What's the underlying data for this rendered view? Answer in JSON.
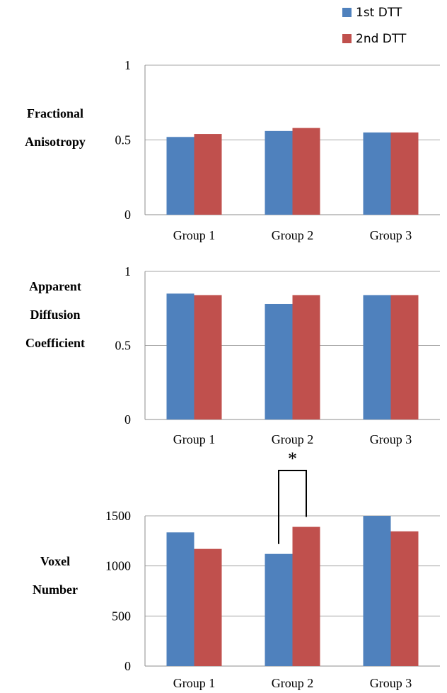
{
  "legend": {
    "items": [
      {
        "label": "1st  DTT",
        "color": "#4F81BD"
      },
      {
        "label": "2nd DTT",
        "color": "#C0504D"
      }
    ]
  },
  "chart_data": [
    {
      "type": "bar",
      "title": "",
      "ylabel": "Fractional Anisotropy",
      "ylabel_lines": [
        "Fractional",
        "Anisotropy"
      ],
      "xlabel": "",
      "categories": [
        "Group 1",
        "Group 2",
        "Group 3"
      ],
      "ylim": [
        0,
        1
      ],
      "yticks": [
        0,
        0.5,
        1
      ],
      "ytick_labels": [
        "0",
        "0.5",
        "1"
      ],
      "grid": true,
      "series": [
        {
          "name": "1st  DTT",
          "values": [
            0.52,
            0.56,
            0.55
          ]
        },
        {
          "name": "2nd DTT",
          "values": [
            0.54,
            0.58,
            0.55
          ]
        }
      ]
    },
    {
      "type": "bar",
      "title": "",
      "ylabel": "Apparent Diffusion Coefficient",
      "ylabel_lines": [
        "Apparent",
        "Diffusion",
        "Coefficient"
      ],
      "xlabel": "",
      "categories": [
        "Group 1",
        "Group 2",
        "Group 3"
      ],
      "ylim": [
        0,
        1
      ],
      "yticks": [
        0,
        0.5,
        1
      ],
      "ytick_labels": [
        "0",
        "0.5",
        "1"
      ],
      "grid": true,
      "series": [
        {
          "name": "1st  DTT",
          "values": [
            0.85,
            0.78,
            0.84
          ]
        },
        {
          "name": "2nd DTT",
          "values": [
            0.84,
            0.84,
            0.84
          ]
        }
      ]
    },
    {
      "type": "bar",
      "title": "",
      "ylabel": "Voxel Number",
      "ylabel_lines": [
        "Voxel",
        "Number"
      ],
      "xlabel": "",
      "categories": [
        "Group 1",
        "Group 2",
        "Group 3"
      ],
      "ylim": [
        0,
        1500
      ],
      "yticks": [
        0,
        500,
        1000,
        1500
      ],
      "ytick_labels": [
        "0",
        "500",
        "1000",
        "1500"
      ],
      "grid": true,
      "series": [
        {
          "name": "1st  DTT",
          "values": [
            1335,
            1120,
            1500
          ]
        },
        {
          "name": "2nd DTT",
          "values": [
            1170,
            1390,
            1345
          ]
        }
      ],
      "significance": {
        "category": "Group 2",
        "marker": "*"
      }
    }
  ]
}
